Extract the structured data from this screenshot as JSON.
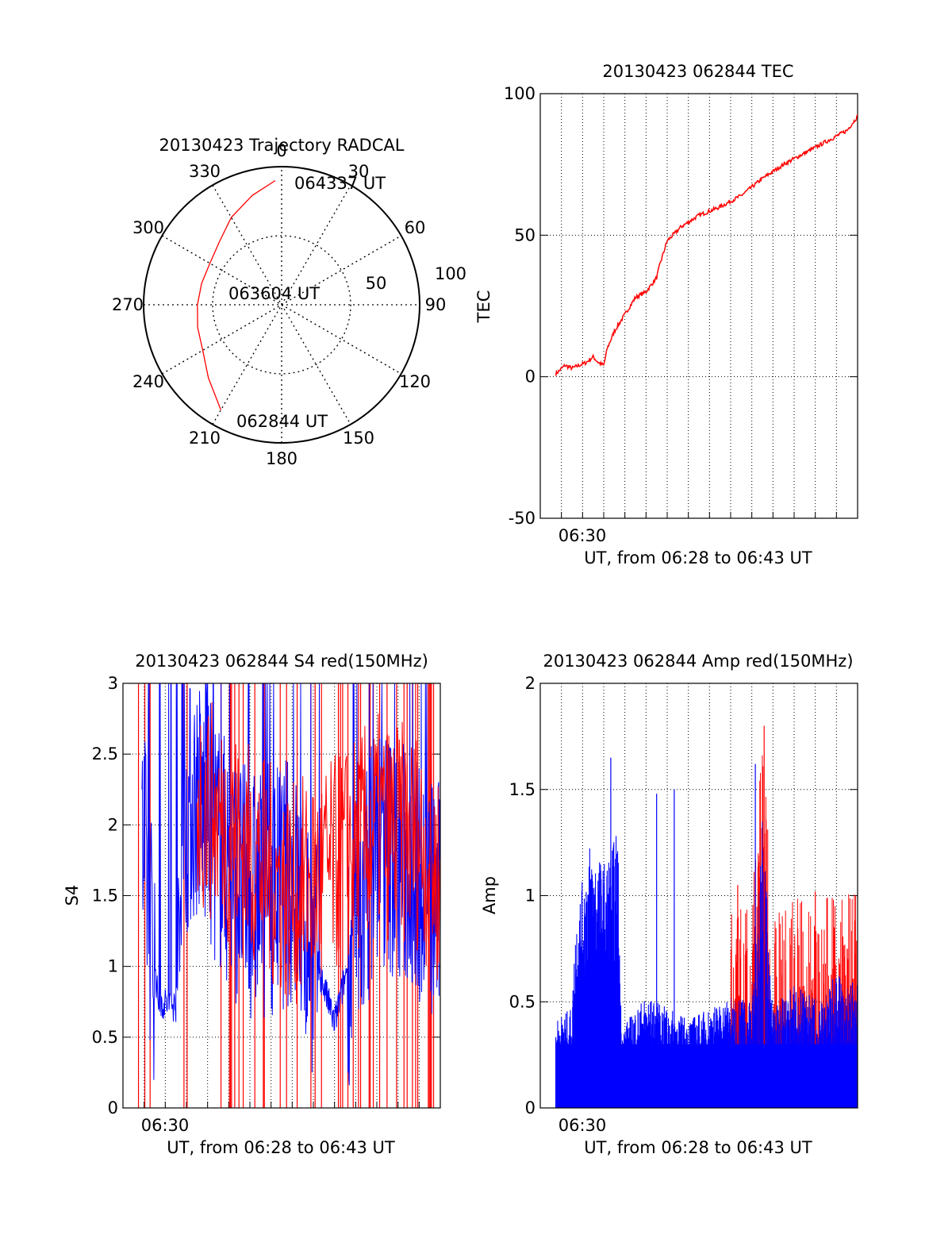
{
  "chart_data": [
    {
      "type": "polar",
      "title": "20130423 Trajectory RADCAL",
      "angle_labels": [
        "0",
        "30",
        "60",
        "90",
        "120",
        "150",
        "180",
        "210",
        "240",
        "270",
        "300",
        "330"
      ],
      "radius_labels": [
        "50",
        "100"
      ],
      "rlim": [
        0,
        100
      ],
      "grid": true,
      "annotations": [
        "064337 UT",
        "063604 UT",
        "062844 UT"
      ],
      "colors": {
        "trajectory": "#ff0000"
      },
      "trajectory": [
        {
          "az": 210,
          "r": 88
        },
        {
          "az": 225,
          "r": 75
        },
        {
          "az": 240,
          "r": 66
        },
        {
          "az": 255,
          "r": 63
        },
        {
          "az": 270,
          "r": 61
        },
        {
          "az": 285,
          "r": 60
        },
        {
          "az": 300,
          "r": 60
        },
        {
          "az": 315,
          "r": 64
        },
        {
          "az": 330,
          "r": 73
        },
        {
          "az": 345,
          "r": 82
        },
        {
          "az": 357,
          "r": 90
        }
      ]
    },
    {
      "type": "line",
      "title": "20130423 062844 TEC",
      "ylabel": "TEC",
      "xlabel": "UT, from 06:28 to 06:43 UT",
      "x_tick_labels": [
        "06:30"
      ],
      "ylim": [
        -50,
        100
      ],
      "yticks": [
        "100",
        "50",
        "0",
        "-50"
      ],
      "grid": true,
      "colors": {
        "series": "#ff0000"
      },
      "series": [
        {
          "x": [
            "06:28:44",
            "06:29:10",
            "06:29:30",
            "06:29:50",
            "06:30:10",
            "06:30:30",
            "06:30:45",
            "06:31:00",
            "06:31:10",
            "06:31:30",
            "06:32:00",
            "06:32:30",
            "06:33:00",
            "06:33:30",
            "06:33:40",
            "06:34:00",
            "06:34:40",
            "06:35:30",
            "06:36:30",
            "06:37:30",
            "06:38:30",
            "06:39:30",
            "06:40:30",
            "06:41:30",
            "06:42:30",
            "06:43:00"
          ],
          "values": [
            1,
            4,
            3,
            4,
            5,
            7,
            5,
            4,
            10,
            16,
            22,
            28,
            30,
            35,
            40,
            48,
            53,
            57,
            60,
            64,
            70,
            75,
            79,
            83,
            87,
            92
          ]
        }
      ]
    },
    {
      "type": "line",
      "title": "20130423 062844 S4 red(150MHz)",
      "ylabel": "S4",
      "xlabel": "UT, from 06:28 to 06:43 UT",
      "x_tick_labels": [
        "06:30"
      ],
      "ylim": [
        0,
        3
      ],
      "yticks": [
        "3",
        "2.5",
        "2",
        "1.5",
        "1",
        "0.5",
        "0"
      ],
      "grid": true,
      "colors": {
        "series_red": "#ff0000",
        "series_blue": "#0000ff"
      },
      "series_approx": [
        {
          "color": "blue",
          "x": [
            "06:29:00",
            "06:29:40",
            "06:30:30",
            "06:31:00",
            "06:31:30",
            "06:33:00",
            "06:34:00",
            "06:36:00",
            "06:38:00",
            "06:40:00",
            "06:42:00",
            "06:43:00"
          ],
          "values": [
            1.8,
            0.75,
            0.72,
            2.1,
            2.2,
            1.7,
            1.5,
            1.6,
            0.6,
            1.9,
            1.6,
            1.4
          ]
        },
        {
          "color": "red",
          "x": [
            "06:31:30",
            "06:34:00",
            "06:36:00",
            "06:38:00",
            "06:40:00",
            "06:42:00",
            "06:43:00"
          ],
          "values": [
            2.2,
            1.8,
            1.5,
            1.7,
            2.0,
            1.9,
            1.6
          ]
        }
      ]
    },
    {
      "type": "bar",
      "title": "20130423 062844 Amp red(150MHz)",
      "ylabel": "Amp",
      "xlabel": "UT, from 06:28 to 06:43 UT",
      "x_tick_labels": [
        "06:30"
      ],
      "ylim": [
        0,
        2
      ],
      "yticks": [
        "2",
        "1.5",
        "1",
        "0.5",
        "0"
      ],
      "grid": true,
      "colors": {
        "series_red": "#ff0000",
        "series_blue": "#0000ff"
      },
      "envelope_blue": {
        "x": [
          "06:28:44",
          "06:29:30",
          "06:29:40",
          "06:30:20",
          "06:31:00",
          "06:31:40",
          "06:31:50",
          "06:32:30",
          "06:33:00",
          "06:34:00",
          "06:35:00",
          "06:36:00",
          "06:37:00",
          "06:38:00",
          "06:38:30",
          "06:39:00",
          "06:40:00",
          "06:41:00",
          "06:42:00",
          "06:43:00"
        ],
        "values": [
          0.4,
          0.45,
          0.85,
          1.2,
          1.1,
          1.25,
          0.35,
          0.45,
          0.5,
          0.45,
          0.4,
          0.45,
          0.5,
          0.5,
          1.3,
          0.45,
          0.55,
          0.5,
          0.6,
          0.55
        ]
      },
      "peaks_blue": [
        {
          "x": "06:31:20",
          "value": 1.65
        },
        {
          "x": "06:33:30",
          "value": 1.48
        },
        {
          "x": "06:34:20",
          "value": 1.5
        },
        {
          "x": "06:38:10",
          "value": 1.62
        }
      ],
      "peaks_red": [
        {
          "x": "06:38:35",
          "value": 1.8
        },
        {
          "x": "06:37:20",
          "value": 1.05
        },
        {
          "x": "06:41:00",
          "value": 1.02
        }
      ]
    }
  ]
}
